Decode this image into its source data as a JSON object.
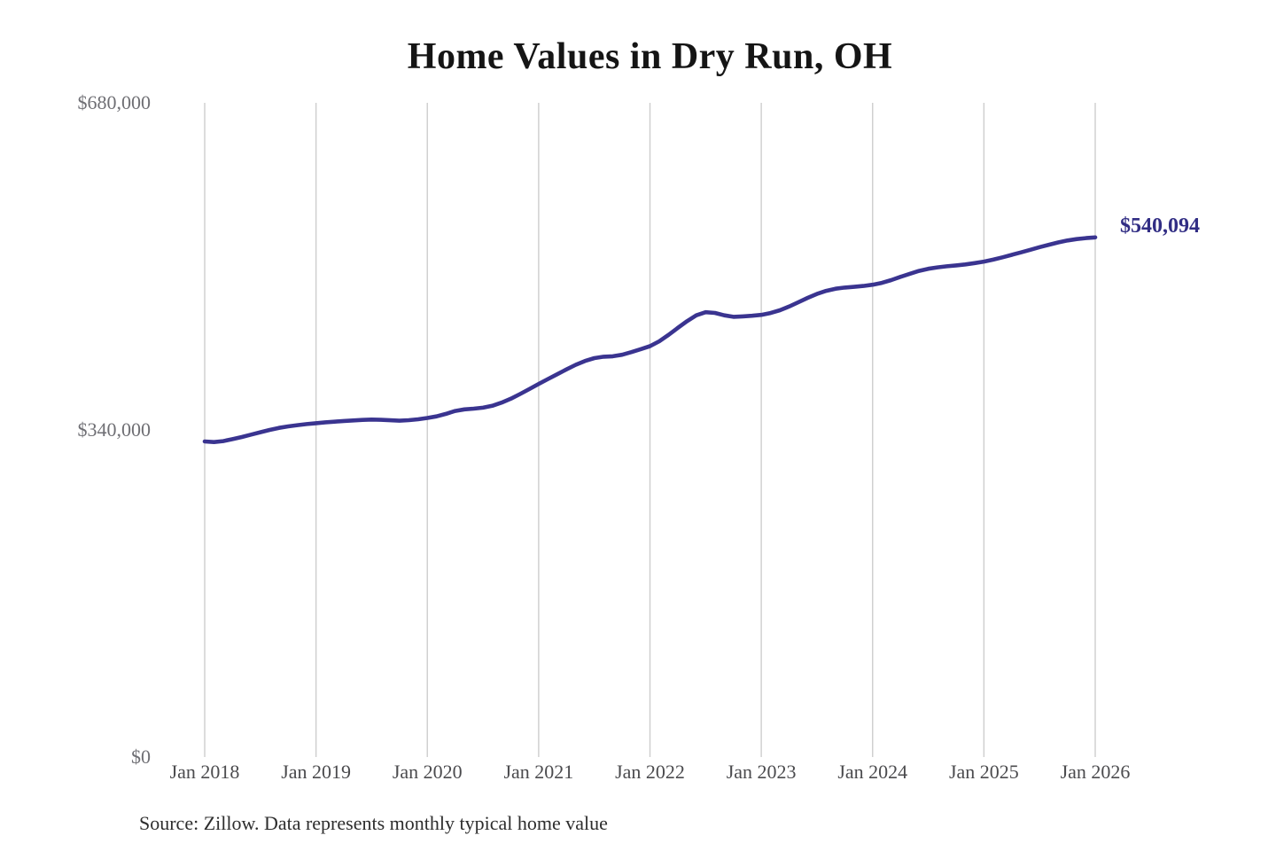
{
  "chart_data": {
    "type": "line",
    "title": "Home Values in Dry Run, OH",
    "source": "Source: Zillow. Data represents monthly typical home value",
    "annotation": {
      "text": "$540,094",
      "color": "#312d84"
    },
    "frequency": "monthly",
    "x_start": "Jan 2018",
    "x_end": "Jan 2026",
    "x_tick_labels": [
      "Jan 2018",
      "Jan 2019",
      "Jan 2020",
      "Jan 2021",
      "Jan 2022",
      "Jan 2023",
      "Jan 2024",
      "Jan 2025",
      "Jan 2026"
    ],
    "y_ticks": [
      {
        "label": "$0",
        "value": 0
      },
      {
        "label": "$340,000",
        "value": 340000
      },
      {
        "label": "$680,000",
        "value": 680000
      }
    ],
    "ylim": [
      0,
      680000
    ],
    "grid": "vertical-only",
    "grid_color": "#cdcdcd",
    "legend": "none",
    "series": [
      {
        "name": "Typical home value",
        "color": "#3a3490",
        "values": [
          328000,
          327400,
          328400,
          330400,
          332600,
          335100,
          337600,
          340000,
          342100,
          343700,
          345000,
          346100,
          347000,
          347900,
          348600,
          349300,
          349900,
          350400,
          350800,
          350500,
          350000,
          349600,
          350100,
          351100,
          352400,
          354100,
          356700,
          359700,
          361400,
          362100,
          363100,
          365100,
          368400,
          372400,
          377300,
          382500,
          387800,
          392900,
          397900,
          402900,
          407700,
          411700,
          414600,
          416100,
          416600,
          418100,
          420900,
          423900,
          427100,
          432100,
          438800,
          446100,
          453100,
          459100,
          462400,
          461600,
          459100,
          457600,
          458000,
          458700,
          459600,
          461500,
          464400,
          468300,
          472800,
          477300,
          481300,
          484600,
          486800,
          488000,
          488700,
          489600,
          490900,
          492900,
          495700,
          499100,
          502300,
          505300,
          507500,
          509000,
          510100,
          511000,
          512000,
          513400,
          515000,
          517000,
          519400,
          522000,
          524600,
          527200,
          530000,
          532500,
          534900,
          536900,
          538400,
          539400,
          540094
        ]
      }
    ]
  }
}
